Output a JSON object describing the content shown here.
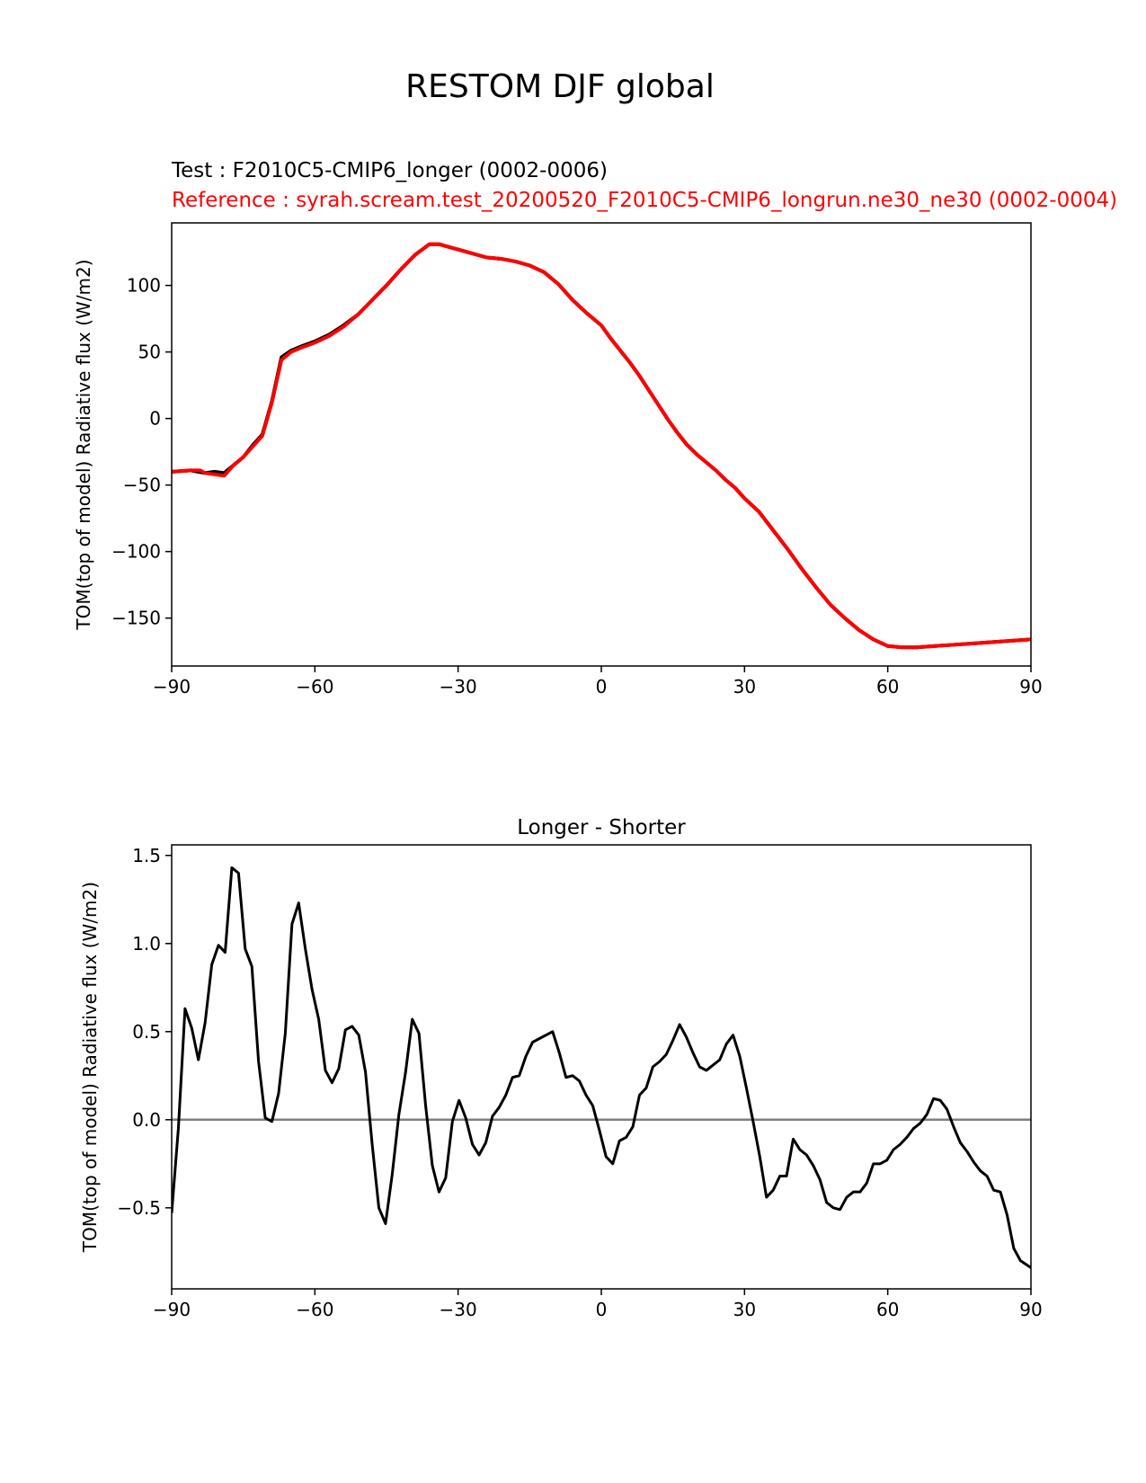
{
  "figure": {
    "title": "RESTOM DJF global",
    "test_label": "Test : F2010C5-CMIP6_longer (0002-0006)",
    "ref_label": "Reference : syrah.scream.test_20200520_F2010C5-CMIP6_longrun.ne30_ne30 (0002-0004)"
  },
  "colors": {
    "test": "#000000",
    "reference": "#ff0000",
    "zero_line": "#808080"
  },
  "chart_data": [
    {
      "type": "line",
      "title": "",
      "xlabel": "",
      "ylabel": "TOM(top of model) Radiative flux (W/m2)",
      "xlim": [
        -90,
        90
      ],
      "ylim": [
        -186,
        147
      ],
      "xticks": [
        -90,
        -60,
        -30,
        0,
        30,
        60,
        90
      ],
      "xtick_labels": [
        "−90",
        "−60",
        "−30",
        "0",
        "30",
        "60",
        "90"
      ],
      "yticks": [
        -150,
        -100,
        -50,
        0,
        50,
        100
      ],
      "ytick_labels": [
        "−150",
        "−100",
        "−50",
        "0",
        "50",
        "100"
      ],
      "series": [
        {
          "name": "Test",
          "color": "#000000",
          "x": [
            -90,
            -86,
            -83,
            -81,
            -79,
            -77,
            -75,
            -73,
            -71,
            -69,
            -67,
            -65,
            -63,
            -60,
            -57,
            -54,
            -51,
            -48,
            -45,
            -42,
            -39,
            -36,
            -34,
            -32,
            -30,
            -27,
            -24,
            -21,
            -18,
            -15,
            -12,
            -9,
            -6,
            -3,
            0,
            2,
            4,
            6,
            8,
            10,
            12,
            14,
            16,
            18,
            20,
            22,
            24,
            26,
            28,
            30,
            33,
            36,
            39,
            42,
            45,
            48,
            51,
            54,
            57,
            60,
            63,
            66,
            70,
            74,
            78,
            82,
            86,
            90
          ],
          "values": [
            -40,
            -39,
            -41,
            -40,
            -41,
            -35,
            -29,
            -20,
            -12,
            13,
            46,
            51,
            54,
            58,
            63,
            70,
            78,
            89,
            100,
            112,
            123,
            131,
            131,
            129,
            127,
            124,
            121,
            120,
            118,
            115,
            110,
            101,
            89,
            79,
            70,
            60,
            51,
            42,
            32,
            21,
            10,
            -1,
            -11,
            -20,
            -27,
            -33,
            -39,
            -46,
            -52,
            -60,
            -70,
            -84,
            -98,
            -113,
            -127,
            -140,
            -150,
            -159,
            -166,
            -171,
            -172,
            -172,
            -171,
            -170,
            -169,
            -168,
            -167,
            -166
          ]
        },
        {
          "name": "Reference",
          "color": "#ff0000",
          "x": [
            -90,
            -86,
            -84,
            -83,
            -81,
            -79,
            -77,
            -75,
            -73,
            -71,
            -69,
            -67,
            -65,
            -63,
            -60,
            -57,
            -54,
            -51,
            -48,
            -45,
            -42,
            -39,
            -36,
            -34,
            -32,
            -30,
            -27,
            -24,
            -21,
            -18,
            -15,
            -12,
            -9,
            -6,
            -3,
            0,
            2,
            4,
            6,
            8,
            10,
            12,
            14,
            16,
            18,
            20,
            22,
            24,
            26,
            28,
            30,
            33,
            36,
            39,
            42,
            45,
            48,
            51,
            54,
            57,
            60,
            63,
            66,
            70,
            74,
            78,
            82,
            86,
            90
          ],
          "values": [
            -40,
            -39,
            -39,
            -41,
            -42,
            -43,
            -35,
            -29,
            -21,
            -13,
            12,
            44,
            50,
            53,
            57,
            62,
            69,
            78,
            89,
            100,
            112,
            123,
            131,
            131,
            129,
            127,
            124,
            121,
            120,
            118,
            115,
            110,
            101,
            89,
            79,
            70,
            60,
            51,
            42,
            32,
            21,
            10,
            -1,
            -11,
            -20,
            -27,
            -33,
            -39,
            -46,
            -52,
            -60,
            -70,
            -84,
            -98,
            -113,
            -127,
            -140,
            -150,
            -159,
            -166,
            -171,
            -172,
            -172,
            -171,
            -170,
            -169,
            -168,
            -167,
            -166
          ]
        }
      ]
    },
    {
      "type": "line",
      "title": "Longer - Shorter",
      "xlabel": "",
      "ylabel": "TOM(top of model) Radiative flux (W/m2)",
      "xlim": [
        -90,
        90
      ],
      "ylim": [
        -0.96,
        1.56
      ],
      "xticks": [
        -90,
        -60,
        -30,
        0,
        30,
        60,
        90
      ],
      "xtick_labels": [
        "−90",
        "−60",
        "−30",
        "0",
        "30",
        "60",
        "90"
      ],
      "yticks": [
        -0.5,
        0.0,
        0.5,
        1.0,
        1.5
      ],
      "ytick_labels": [
        "−0.5",
        "0.0",
        "0.5",
        "1.0",
        "1.5"
      ],
      "zero_line": 0,
      "series": [
        {
          "name": "Longer - Shorter",
          "color": "#000000",
          "x": [
            -90,
            -88.6,
            -87.2,
            -85.8,
            -84.4,
            -83,
            -81.6,
            -80.2,
            -78.8,
            -77.4,
            -76,
            -74.6,
            -73.2,
            -71.8,
            -70.4,
            -69,
            -67.6,
            -66.2,
            -64.8,
            -63.4,
            -62,
            -60.6,
            -59.2,
            -57.8,
            -56.4,
            -55,
            -53.6,
            -52.2,
            -50.8,
            -49.4,
            -48,
            -46.6,
            -45.2,
            -43.8,
            -42.4,
            -41,
            -39.6,
            -38.2,
            -36.8,
            -35.4,
            -34,
            -32.6,
            -31.2,
            -29.8,
            -28.4,
            -27,
            -25.6,
            -24.2,
            -22.8,
            -21.4,
            -20,
            -18.6,
            -17.2,
            -15.8,
            -14.4,
            -13,
            -11.6,
            -10.2,
            -8.8,
            -7.4,
            -6,
            -4.6,
            -3.2,
            -1.8,
            -0.4,
            1,
            2.4,
            3.8,
            5.2,
            6.6,
            8,
            9.4,
            10.8,
            12.2,
            13.6,
            15,
            16.4,
            17.8,
            19.2,
            20.6,
            22,
            23.4,
            24.8,
            26.2,
            27.6,
            29,
            30.4,
            31.8,
            33.2,
            34.6,
            36,
            37.4,
            38.8,
            40.2,
            41.6,
            43,
            44.4,
            45.8,
            47.2,
            48.6,
            50,
            51.4,
            52.8,
            54.2,
            55.6,
            57,
            58.4,
            59.8,
            61.2,
            62.6,
            64,
            65.4,
            66.8,
            68.2,
            69.6,
            71,
            72.4,
            73.8,
            75.2,
            76.6,
            78,
            79.4,
            80.8,
            82.2,
            83.6,
            85,
            86.4,
            87.8,
            90
          ],
          "values": [
            -0.53,
            -0.05,
            0.63,
            0.52,
            0.34,
            0.55,
            0.88,
            0.99,
            0.95,
            1.43,
            1.4,
            0.97,
            0.87,
            0.33,
            0.01,
            -0.01,
            0.15,
            0.49,
            1.11,
            1.23,
            0.97,
            0.74,
            0.57,
            0.28,
            0.21,
            0.29,
            0.51,
            0.53,
            0.48,
            0.27,
            -0.14,
            -0.5,
            -0.59,
            -0.31,
            0.03,
            0.27,
            0.57,
            0.49,
            0.08,
            -0.26,
            -0.41,
            -0.33,
            -0.01,
            0.11,
            0.01,
            -0.14,
            -0.2,
            -0.13,
            0.02,
            0.07,
            0.14,
            0.24,
            0.25,
            0.36,
            0.44,
            0.46,
            0.48,
            0.5,
            0.38,
            0.24,
            0.25,
            0.22,
            0.14,
            0.08,
            -0.06,
            -0.21,
            -0.25,
            -0.12,
            -0.1,
            -0.04,
            0.14,
            0.18,
            0.3,
            0.33,
            0.37,
            0.45,
            0.54,
            0.47,
            0.38,
            0.3,
            0.28,
            0.31,
            0.34,
            0.43,
            0.48,
            0.36,
            0.18,
            -0.01,
            -0.21,
            -0.44,
            -0.4,
            -0.32,
            -0.32,
            -0.11,
            -0.17,
            -0.2,
            -0.26,
            -0.34,
            -0.47,
            -0.5,
            -0.51,
            -0.44,
            -0.41,
            -0.41,
            -0.36,
            -0.25,
            -0.25,
            -0.23,
            -0.17,
            -0.14,
            -0.1,
            -0.05,
            -0.02,
            0.03,
            0.12,
            0.11,
            0.06,
            -0.04,
            -0.13,
            -0.18,
            -0.24,
            -0.29,
            -0.32,
            -0.4,
            -0.41,
            -0.54,
            -0.73,
            -0.8,
            -0.84
          ]
        }
      ]
    }
  ]
}
